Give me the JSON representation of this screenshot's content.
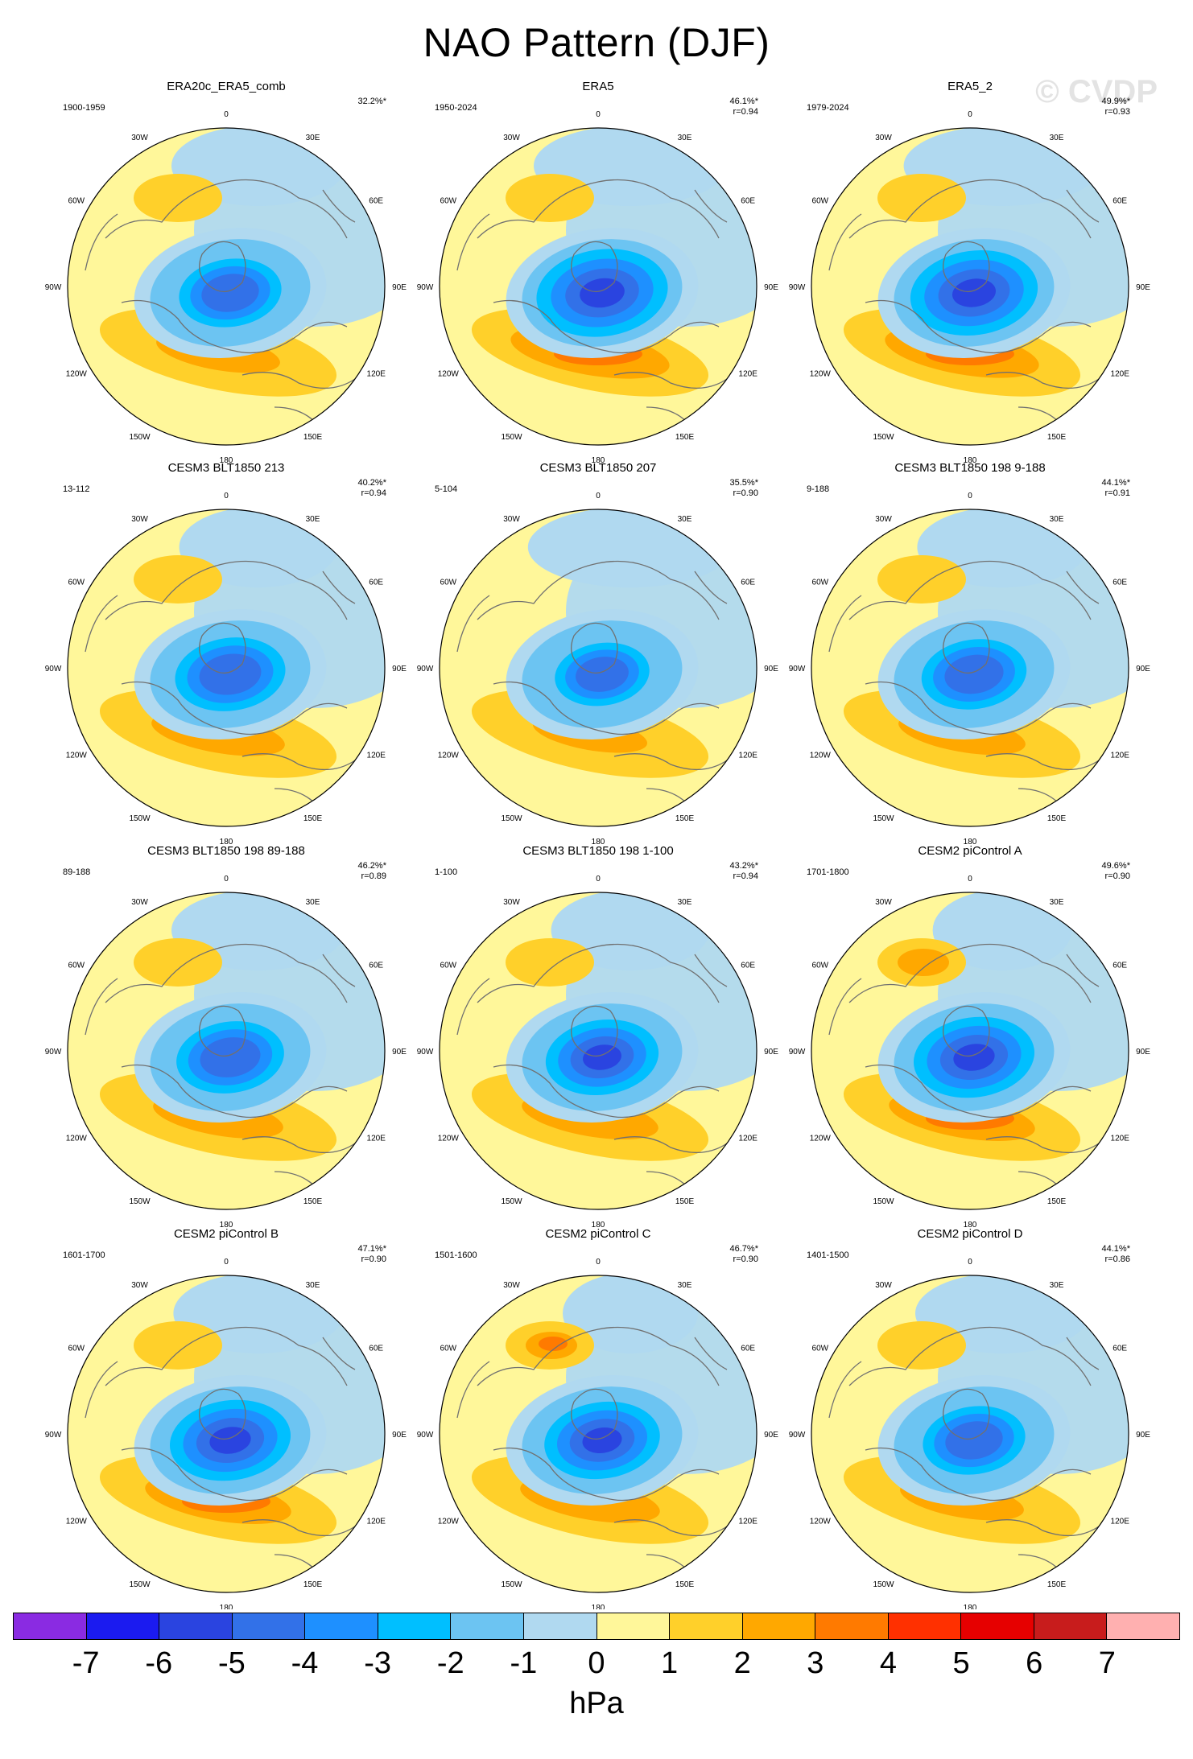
{
  "title": "NAO Pattern (DJF)",
  "watermark": "© CVDP",
  "colors": {
    "background": "#ffffff",
    "neg7": "#8a2be2",
    "neg6": "#1b1bf0",
    "neg5": "#2a44e0",
    "neg4": "#3271e8",
    "neg3": "#1e90ff",
    "neg2": "#00bfff",
    "neg1": "#6cc4f2",
    "zero": "#b0d9f0",
    "pos1": "#fff79a",
    "pos2": "#ffd02a",
    "pos3": "#ffa800",
    "pos4": "#ff7a00",
    "pos5": "#ff3000",
    "pos6": "#e60000",
    "pos7": "#c81c1c",
    "pos8": "#ffb0b0",
    "coastline": "#707070"
  },
  "lon_labels": [
    "180",
    "150E",
    "120E",
    "90E",
    "60E",
    "30E",
    "0",
    "30W",
    "60W",
    "90W",
    "120W",
    "150W"
  ],
  "panels": [
    {
      "title": "ERA20c_ERA5_comb",
      "period": "1900-1959",
      "pct": "32.2%*",
      "r": "",
      "strength": 0.78,
      "pac": 0.5
    },
    {
      "title": "ERA5",
      "period": "1950-2024",
      "pct": "46.1%*",
      "r": "r=0.94",
      "strength": 1.0,
      "pac": 0.25
    },
    {
      "title": "ERA5_2",
      "period": "1979-2024",
      "pct": "49.9%*",
      "r": "r=0.93",
      "strength": 0.97,
      "pac": 0.2
    },
    {
      "title": "CESM3 BLT1850 213",
      "period": "13-112",
      "pct": "40.2%*",
      "r": "r=0.94",
      "strength": 0.84,
      "pac": 0.7
    },
    {
      "title": "CESM3 BLT1850 207",
      "period": "5-104",
      "pct": "35.5%*",
      "r": "r=0.90",
      "strength": 0.72,
      "pac": 0.1
    },
    {
      "title": "CESM3 BLT1850 198 9-188",
      "period": "9-188",
      "pct": "44.1%*",
      "r": "r=0.91",
      "strength": 0.8,
      "pac": 0.55
    },
    {
      "title": "CESM3 BLT1850 198 89-188",
      "period": "89-188",
      "pct": "46.2%*",
      "r": "r=0.89",
      "strength": 0.82,
      "pac": 0.5
    },
    {
      "title": "CESM3 BLT1850 198 1-100",
      "period": "1-100",
      "pct": "43.2%*",
      "r": "r=0.94",
      "strength": 0.86,
      "pac": 0.7
    },
    {
      "title": "CESM2 piControl A",
      "period": "1701-1800",
      "pct": "49.6%*",
      "r": "r=0.90",
      "strength": 0.92,
      "pac": 0.95
    },
    {
      "title": "CESM2 piControl B",
      "period": "1601-1700",
      "pct": "47.1%*",
      "r": "r=0.90",
      "strength": 0.92,
      "pac": 0.55
    },
    {
      "title": "CESM2 piControl C",
      "period": "1501-1600",
      "pct": "46.7%*",
      "r": "r=0.90",
      "strength": 0.88,
      "pac": 1.0
    },
    {
      "title": "CESM2 piControl D",
      "period": "1401-1500",
      "pct": "44.1%*",
      "r": "r=0.86",
      "strength": 0.78,
      "pac": 0.5
    }
  ],
  "colorbar": {
    "labels": [
      "-7",
      "-6",
      "-5",
      "-4",
      "-3",
      "-2",
      "-1",
      "0",
      "1",
      "2",
      "3",
      "4",
      "5",
      "6",
      "7"
    ],
    "colors": [
      "#8a2be2",
      "#1b1bf0",
      "#2a44e0",
      "#3271e8",
      "#1e90ff",
      "#00bfff",
      "#6cc4f2",
      "#b0d9f0",
      "#fff79a",
      "#ffd02a",
      "#ffa800",
      "#ff7a00",
      "#ff3000",
      "#e60000",
      "#c81c1c",
      "#ffb0b0"
    ],
    "units": "hPa"
  }
}
